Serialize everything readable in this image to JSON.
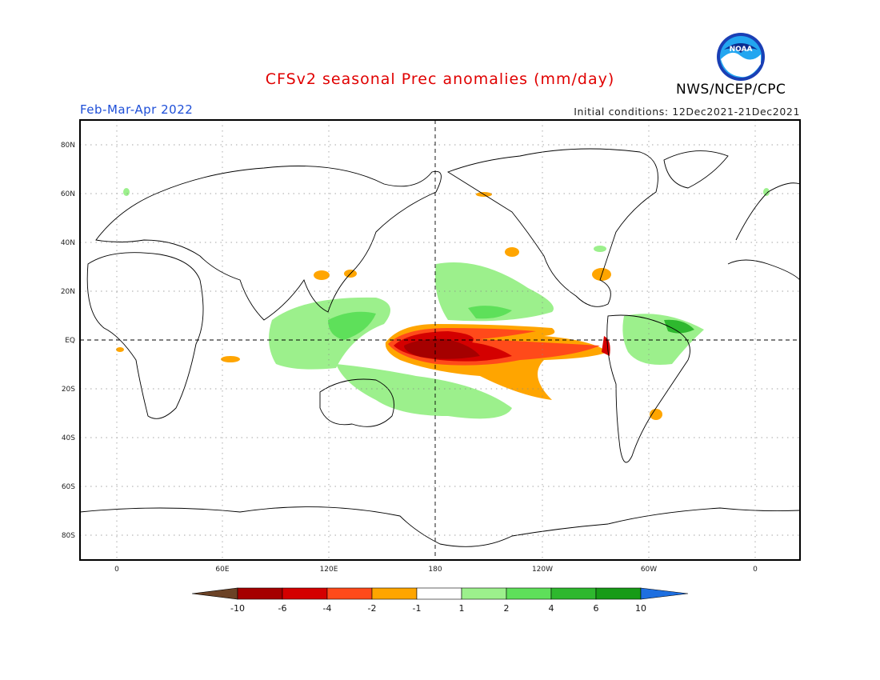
{
  "header": {
    "title": "CFSv2 seasonal Prec anomalies (mm/day)",
    "period": "Feb-Mar-Apr 2022",
    "initial_conditions": "Initial conditions: 12Dec2021-21Dec2021",
    "organization": "NWS/NCEP/CPC",
    "logo_text": "NOAA"
  },
  "map": {
    "lon_ticks": [
      "0",
      "60E",
      "120E",
      "180",
      "120W",
      "60W",
      "0"
    ],
    "lat_ticks": [
      "80N",
      "60N",
      "40N",
      "20N",
      "EQ",
      "20S",
      "40S",
      "60S",
      "80S"
    ]
  },
  "colorbar": {
    "labels": [
      "-10",
      "-6",
      "-4",
      "-2",
      "-1",
      "1",
      "2",
      "4",
      "6",
      "10"
    ],
    "colors": {
      "below_min": "#6b4226",
      "dry_10_6": "#a50000",
      "dry_6_4": "#d40000",
      "dry_4_2": "#ff4a1a",
      "dry_2_1": "#ffa500",
      "neutral": "#ffffff",
      "wet_1_2": "#9cf08c",
      "wet_2_4": "#5ee05a",
      "wet_4_6": "#2eb82e",
      "wet_6_10": "#179b17",
      "above_max": "#1e6fe0"
    }
  }
}
